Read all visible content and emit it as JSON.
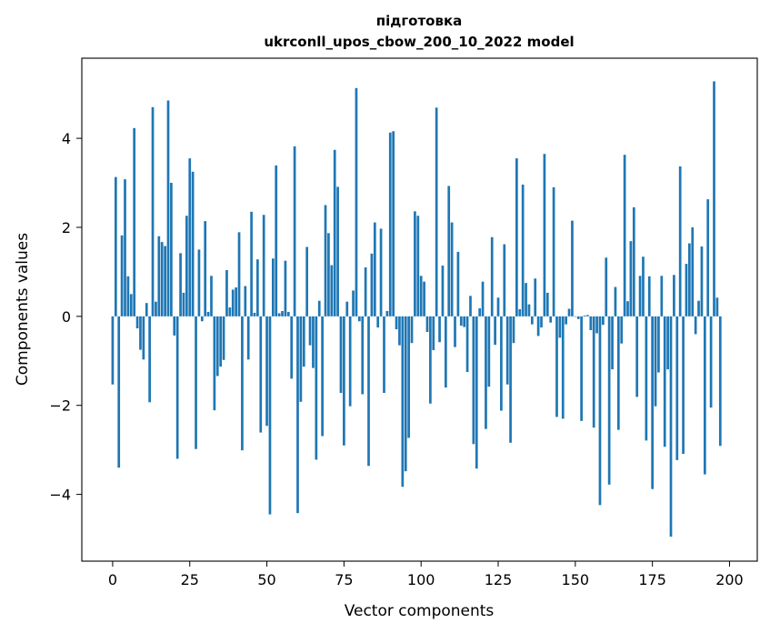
{
  "chart_data": {
    "type": "bar",
    "title_line1": "підготовка",
    "title_line2": "ukrconll_upos_cbow_200_10_2022 model",
    "xlabel": "Vector components",
    "ylabel": "Components values",
    "xlim": [
      -10,
      209
    ],
    "ylim": [
      -5.5,
      5.8
    ],
    "xticks": [
      0,
      25,
      50,
      75,
      100,
      125,
      150,
      175,
      200
    ],
    "yticks": [
      -4,
      -2,
      0,
      2,
      4
    ],
    "ytick_labels": [
      "−4",
      "−2",
      "0",
      "2",
      "4"
    ],
    "bar_color": "#1f77b4",
    "values": [
      -1.53,
      3.13,
      -3.4,
      1.82,
      3.08,
      0.9,
      0.5,
      4.23,
      -0.27,
      -0.75,
      -0.97,
      0.3,
      -1.93,
      4.7,
      0.33,
      1.8,
      1.67,
      1.58,
      4.85,
      3.0,
      -0.43,
      -3.2,
      1.42,
      0.53,
      2.26,
      3.55,
      3.25,
      -2.98,
      1.5,
      -0.11,
      2.14,
      0.1,
      0.91,
      -2.11,
      -1.34,
      -1.13,
      -0.98,
      1.04,
      0.2,
      0.6,
      0.65,
      1.89,
      -3.01,
      0.68,
      -0.97,
      2.35,
      0.08,
      1.28,
      -2.61,
      2.28,
      -2.46,
      -4.45,
      1.3,
      3.39,
      0.07,
      0.12,
      1.25,
      0.1,
      -1.4,
      3.82,
      -4.42,
      -1.92,
      -1.13,
      1.56,
      -0.65,
      -1.16,
      -3.22,
      0.35,
      -2.69,
      2.5,
      1.87,
      1.15,
      3.74,
      2.91,
      -1.72,
      -2.9,
      0.33,
      -2.02,
      0.58,
      5.13,
      -0.11,
      -1.75,
      1.1,
      -3.36,
      1.41,
      2.11,
      -0.25,
      1.97,
      -1.72,
      0.12,
      4.13,
      4.16,
      -0.29,
      -0.65,
      -3.83,
      -3.48,
      -2.73,
      -0.6,
      2.36,
      2.26,
      0.91,
      0.78,
      -0.35,
      -1.96,
      -0.76,
      4.69,
      -0.58,
      1.14,
      -1.6,
      2.93,
      2.11,
      -0.69,
      1.45,
      -0.21,
      -0.24,
      -1.25,
      0.46,
      -2.87,
      -3.42,
      0.18,
      0.78,
      -2.53,
      -1.58,
      1.78,
      -0.64,
      0.42,
      -2.12,
      1.62,
      -1.53,
      -2.84,
      -0.6,
      3.55,
      0.16,
      2.96,
      0.75,
      0.27,
      -0.18,
      0.85,
      -0.44,
      -0.25,
      3.65,
      0.53,
      -0.14,
      2.9,
      -2.26,
      -0.48,
      -2.3,
      -0.18,
      0.17,
      2.15,
      -0.01,
      -0.06,
      -2.35,
      0.02,
      0.03,
      -0.31,
      -2.5,
      -0.38,
      -4.24,
      -0.19,
      1.32,
      -3.78,
      -1.19,
      0.66,
      -2.55,
      -0.61,
      3.63,
      0.34,
      1.69,
      2.45,
      -1.81,
      0.91,
      1.34,
      -2.79,
      0.9,
      -3.88,
      -2.02,
      -1.26,
      0.91,
      -2.93,
      -1.19,
      -4.95,
      0.93,
      -3.23,
      3.37,
      -3.09,
      1.18,
      1.64,
      2.0,
      -0.4,
      0.35,
      1.57,
      -3.55,
      2.63,
      -2.05,
      5.28,
      0.42,
      -2.91
    ]
  }
}
